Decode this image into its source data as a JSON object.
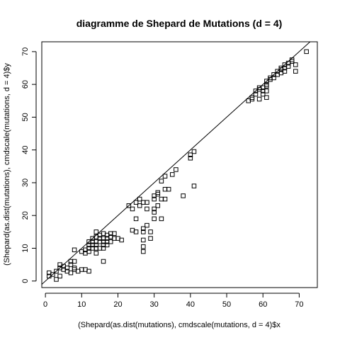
{
  "chart_data": {
    "type": "scatter",
    "title": "diagramme de Shepard de Mutations (d = 4)",
    "xlabel": "(Shepard(as.dist(mutations), cmdscale(mutations, d = 4)$x",
    "ylabel": "(Shepard(as.dist(mutations), cmdscale(mutations, d = 4)$y",
    "xlim": [
      -1,
      75
    ],
    "ylim": [
      -2,
      73
    ],
    "x_ticks": [
      0,
      10,
      20,
      30,
      40,
      50,
      60,
      70
    ],
    "y_ticks": [
      0,
      10,
      20,
      30,
      40,
      50,
      60,
      70
    ],
    "x_tick_labels": [
      "0",
      "10",
      "20",
      "30",
      "40",
      "50",
      "60",
      "70"
    ],
    "y_tick_labels": [
      "0",
      "10",
      "20",
      "30",
      "40",
      "50",
      "60",
      "70"
    ],
    "reference_line": {
      "intercept": 0,
      "slope": 1
    },
    "points": [
      [
        1,
        1.5
      ],
      [
        1,
        2.5
      ],
      [
        2,
        2
      ],
      [
        3,
        0.5
      ],
      [
        3,
        3
      ],
      [
        4,
        1.5
      ],
      [
        4,
        4
      ],
      [
        4,
        5
      ],
      [
        5,
        3.5
      ],
      [
        5,
        4.5
      ],
      [
        6,
        3
      ],
      [
        6,
        4
      ],
      [
        7,
        2.5
      ],
      [
        7,
        5
      ],
      [
        7,
        6
      ],
      [
        8,
        3.5
      ],
      [
        8,
        4
      ],
      [
        8,
        6
      ],
      [
        8,
        9.5
      ],
      [
        9,
        3
      ],
      [
        10,
        3.5
      ],
      [
        10,
        9
      ],
      [
        11,
        3.5
      ],
      [
        11,
        8.5
      ],
      [
        11,
        9.5
      ],
      [
        12,
        3
      ],
      [
        12,
        9
      ],
      [
        12,
        10
      ],
      [
        12,
        11
      ],
      [
        12,
        12
      ],
      [
        13,
        10
      ],
      [
        13,
        11
      ],
      [
        13,
        12
      ],
      [
        13,
        13
      ],
      [
        14,
        8.5
      ],
      [
        14,
        10
      ],
      [
        14,
        11
      ],
      [
        14,
        12
      ],
      [
        14,
        13.5
      ],
      [
        14,
        15
      ],
      [
        15,
        10
      ],
      [
        15,
        12
      ],
      [
        15,
        13
      ],
      [
        15,
        14
      ],
      [
        16,
        6
      ],
      [
        16,
        10
      ],
      [
        16,
        11
      ],
      [
        16,
        12
      ],
      [
        16,
        13
      ],
      [
        16,
        14.5
      ],
      [
        17,
        11
      ],
      [
        17,
        12
      ],
      [
        17,
        13
      ],
      [
        17,
        14
      ],
      [
        18,
        12
      ],
      [
        18,
        13.5
      ],
      [
        18,
        14.5
      ],
      [
        19,
        13
      ],
      [
        19,
        14.5
      ],
      [
        20,
        13
      ],
      [
        21,
        12.5
      ],
      [
        23,
        23
      ],
      [
        24,
        15.5
      ],
      [
        24,
        22
      ],
      [
        25,
        15
      ],
      [
        25,
        19
      ],
      [
        26,
        23
      ],
      [
        27,
        12.5
      ],
      [
        27,
        15
      ],
      [
        27,
        16
      ],
      [
        27,
        9
      ],
      [
        27,
        10.5
      ],
      [
        25,
        24
      ],
      [
        26,
        25
      ],
      [
        27,
        24
      ],
      [
        28,
        17
      ],
      [
        28,
        22
      ],
      [
        28,
        24
      ],
      [
        29,
        13
      ],
      [
        29,
        15
      ],
      [
        30,
        19
      ],
      [
        30,
        21
      ],
      [
        30,
        22
      ],
      [
        30,
        25
      ],
      [
        30,
        26
      ],
      [
        31,
        23
      ],
      [
        31,
        27
      ],
      [
        31,
        26.5
      ],
      [
        32,
        19
      ],
      [
        32,
        25
      ],
      [
        32,
        30.5
      ],
      [
        33,
        25
      ],
      [
        33,
        32
      ],
      [
        33,
        28
      ],
      [
        34,
        28
      ],
      [
        35,
        32.5
      ],
      [
        36,
        34
      ],
      [
        38,
        26
      ],
      [
        40,
        37.5
      ],
      [
        40,
        38.5
      ],
      [
        41,
        39.5
      ],
      [
        41,
        29
      ],
      [
        56,
        55
      ],
      [
        57,
        55.5
      ],
      [
        57,
        56
      ],
      [
        58,
        57
      ],
      [
        58,
        58
      ],
      [
        59,
        55.5
      ],
      [
        59,
        58.5
      ],
      [
        59,
        59
      ],
      [
        60,
        57
      ],
      [
        60,
        58
      ],
      [
        60,
        59
      ],
      [
        61,
        56
      ],
      [
        61,
        58
      ],
      [
        61,
        59.5
      ],
      [
        61,
        60
      ],
      [
        61,
        61
      ],
      [
        62,
        61.5
      ],
      [
        62,
        62
      ],
      [
        63,
        62
      ],
      [
        63,
        63
      ],
      [
        64,
        63
      ],
      [
        64,
        64
      ],
      [
        65,
        63.5
      ],
      [
        65,
        64.5
      ],
      [
        65,
        65
      ],
      [
        66,
        64
      ],
      [
        66,
        65
      ],
      [
        66,
        66
      ],
      [
        67,
        65.5
      ],
      [
        67,
        66.5
      ],
      [
        68,
        67
      ],
      [
        68,
        67.5
      ],
      [
        69,
        64
      ],
      [
        69,
        66
      ],
      [
        72,
        70
      ]
    ]
  }
}
